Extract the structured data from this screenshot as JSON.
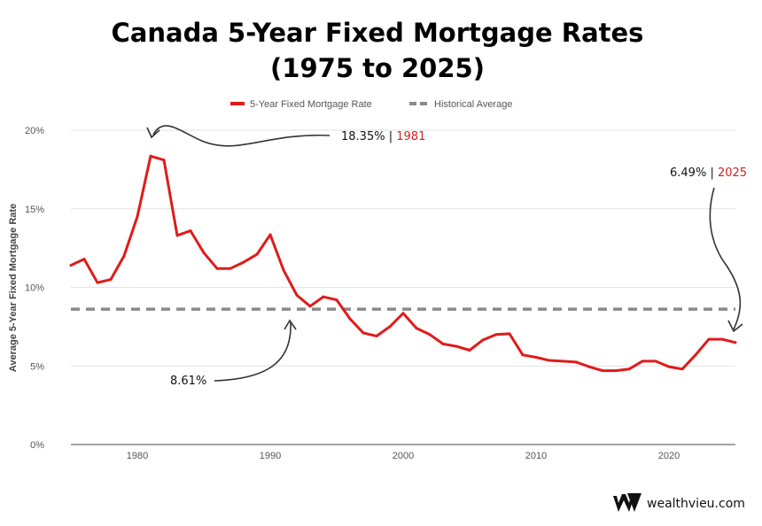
{
  "chart_data": {
    "type": "line",
    "title_line1": "Canada 5-Year Fixed Mortgage Rates",
    "title_line2": "(1975 to 2025)",
    "xlabel": "",
    "ylabel": "Average 5-Year Fixed Mortgage Rate",
    "xlim": [
      1975,
      2025
    ],
    "ylim": [
      0,
      20
    ],
    "x_ticks": [
      1980,
      1990,
      2000,
      2010,
      2020
    ],
    "y_ticks": [
      {
        "value": 0,
        "label": "0%"
      },
      {
        "value": 5,
        "label": "5%"
      },
      {
        "value": 10,
        "label": "10%"
      },
      {
        "value": 15,
        "label": "15%"
      },
      {
        "value": 20,
        "label": "20%"
      }
    ],
    "grid": "horizontal",
    "legend_position": "top",
    "series": [
      {
        "name": "5-Year Fixed Mortgage Rate",
        "color": "#e01b1b",
        "style": "solid",
        "x": [
          1975,
          1976,
          1977,
          1978,
          1979,
          1980,
          1981,
          1982,
          1983,
          1984,
          1985,
          1986,
          1987,
          1988,
          1989,
          1990,
          1991,
          1992,
          1993,
          1994,
          1995,
          1996,
          1997,
          1998,
          1999,
          2000,
          2001,
          2002,
          2003,
          2004,
          2005,
          2006,
          2007,
          2008,
          2009,
          2010,
          2011,
          2012,
          2013,
          2014,
          2015,
          2016,
          2017,
          2018,
          2019,
          2020,
          2021,
          2022,
          2023,
          2024,
          2025
        ],
        "values": [
          11.4,
          11.8,
          10.3,
          10.5,
          12.0,
          14.5,
          18.35,
          18.1,
          13.3,
          13.6,
          12.2,
          11.2,
          11.2,
          11.6,
          12.1,
          13.35,
          11.1,
          9.5,
          8.8,
          9.4,
          9.2,
          8.0,
          7.1,
          6.9,
          7.5,
          8.35,
          7.4,
          7.0,
          6.4,
          6.25,
          6.0,
          6.65,
          7.0,
          7.05,
          5.7,
          5.55,
          5.35,
          5.3,
          5.25,
          4.95,
          4.7,
          4.7,
          4.8,
          5.3,
          5.3,
          4.95,
          4.8,
          5.7,
          6.7,
          6.7,
          6.49
        ]
      },
      {
        "name": "Historical Average",
        "color": "#8a8a8a",
        "style": "dashed",
        "value": 8.61
      }
    ],
    "annotations": [
      {
        "value_text": "18.35%",
        "separator": "|",
        "year_text": "1981"
      },
      {
        "value_text": "6.49%",
        "separator": "|",
        "year_text": "2025"
      },
      {
        "value_text": "8.61%"
      }
    ]
  },
  "brand": {
    "name": "wealthvieu.com"
  }
}
